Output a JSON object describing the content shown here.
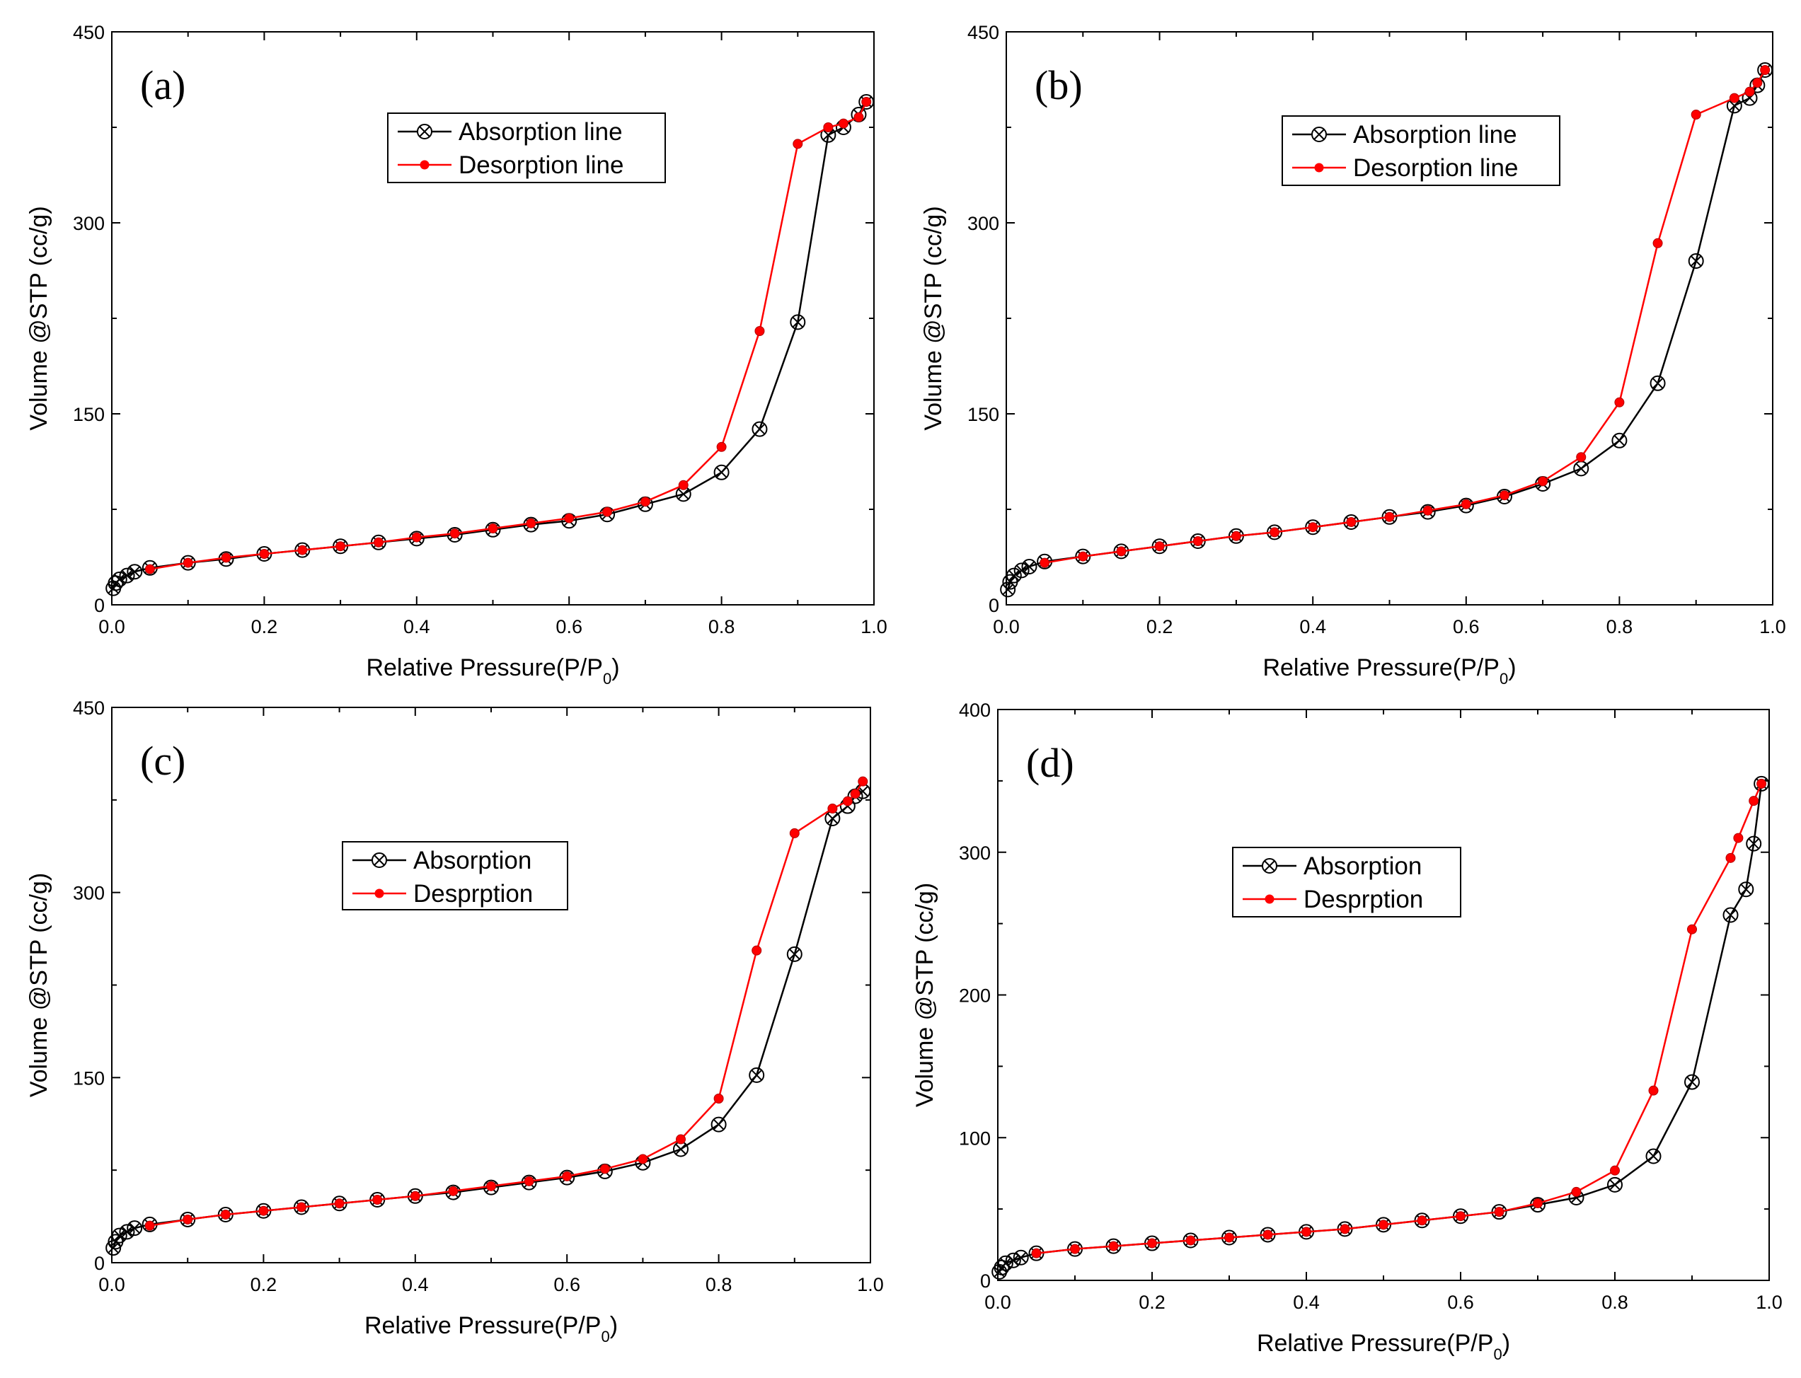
{
  "chart_data": [
    {
      "type": "line",
      "panel_label": "(a)",
      "xlabel_main": "Relative Pressure(P/P",
      "xlabel_sub": "0",
      "xlabel_end": ")",
      "ylabel": "Volume @STP (cc/g)",
      "xlim": [
        0,
        1.0
      ],
      "ylim": [
        0,
        450
      ],
      "xticks": [
        "0.0",
        "0.2",
        "0.4",
        "0.6",
        "0.8",
        "1.0"
      ],
      "yticks": [
        "0",
        "150",
        "300",
        "450"
      ],
      "legend_position": "upper-center",
      "series": [
        {
          "name": "Absorption line",
          "color": "#000000",
          "marker": "circle-x",
          "x": [
            0.002,
            0.005,
            0.01,
            0.02,
            0.03,
            0.05,
            0.1,
            0.15,
            0.2,
            0.25,
            0.3,
            0.35,
            0.4,
            0.45,
            0.5,
            0.55,
            0.6,
            0.65,
            0.7,
            0.75,
            0.8,
            0.85,
            0.9,
            0.94,
            0.96,
            0.98,
            0.99
          ],
          "y": [
            13,
            17,
            20,
            23,
            26,
            29,
            33,
            36,
            40,
            43,
            46,
            49,
            52,
            55,
            59,
            63,
            66,
            71,
            79,
            87,
            104,
            138,
            222,
            369,
            375,
            385,
            395
          ]
        },
        {
          "name": "Desorption line",
          "color": "#ff0000",
          "marker": "dot",
          "x": [
            0.05,
            0.1,
            0.15,
            0.2,
            0.25,
            0.3,
            0.35,
            0.4,
            0.45,
            0.5,
            0.55,
            0.6,
            0.65,
            0.7,
            0.75,
            0.8,
            0.85,
            0.9,
            0.94,
            0.96,
            0.98,
            0.99
          ],
          "y": [
            28,
            33,
            37,
            40,
            43,
            46,
            49,
            53,
            56,
            60,
            64,
            68,
            73,
            81,
            94,
            124,
            215,
            362,
            375,
            378,
            383,
            395
          ]
        }
      ]
    },
    {
      "type": "line",
      "panel_label": "(b)",
      "xlabel_main": "Relative Pressure(P/P",
      "xlabel_sub": "0",
      "xlabel_end": ")",
      "ylabel": "Volume @STP (cc/g)",
      "xlim": [
        0,
        1.0
      ],
      "ylim": [
        0,
        450
      ],
      "xticks": [
        "0.0",
        "0.2",
        "0.4",
        "0.6",
        "0.8",
        "1.0"
      ],
      "yticks": [
        "0",
        "150",
        "300",
        "450"
      ],
      "legend_position": "upper-center",
      "series": [
        {
          "name": "Absorption line",
          "color": "#000000",
          "marker": "circle-x",
          "x": [
            0.002,
            0.005,
            0.01,
            0.02,
            0.03,
            0.05,
            0.1,
            0.15,
            0.2,
            0.25,
            0.3,
            0.35,
            0.4,
            0.45,
            0.5,
            0.55,
            0.6,
            0.65,
            0.7,
            0.75,
            0.8,
            0.85,
            0.9,
            0.95,
            0.97,
            0.98,
            0.99
          ],
          "y": [
            12,
            18,
            23,
            27,
            30,
            34,
            38,
            42,
            46,
            50,
            54,
            57,
            61,
            65,
            69,
            73,
            78,
            85,
            95,
            107,
            129,
            174,
            270,
            392,
            398,
            408,
            420
          ]
        },
        {
          "name": "Desorption line",
          "color": "#ff0000",
          "marker": "dot",
          "x": [
            0.05,
            0.1,
            0.15,
            0.2,
            0.25,
            0.3,
            0.35,
            0.4,
            0.45,
            0.5,
            0.55,
            0.6,
            0.65,
            0.7,
            0.75,
            0.8,
            0.85,
            0.9,
            0.95,
            0.97,
            0.98,
            0.99
          ],
          "y": [
            33,
            38,
            42,
            46,
            50,
            54,
            57,
            61,
            65,
            69,
            74,
            79,
            86,
            97,
            116,
            159,
            284,
            385,
            398,
            403,
            410,
            420
          ]
        }
      ]
    },
    {
      "type": "line",
      "panel_label": "(c)",
      "xlabel_main": "Relative Pressure(P/P",
      "xlabel_sub": "0",
      "xlabel_end": ")",
      "ylabel": "Volume @STP (cc/g)",
      "xlim": [
        0,
        1.0
      ],
      "ylim": [
        0,
        450
      ],
      "xticks": [
        "0.0",
        "0.2",
        "0.4",
        "0.6",
        "0.8",
        "1.0"
      ],
      "yticks": [
        "0",
        "150",
        "300",
        "450"
      ],
      "legend_position": "upper-center",
      "series": [
        {
          "name": "Absorption",
          "color": "#000000",
          "marker": "circle-x",
          "x": [
            0.002,
            0.005,
            0.01,
            0.02,
            0.03,
            0.05,
            0.1,
            0.15,
            0.2,
            0.25,
            0.3,
            0.35,
            0.4,
            0.45,
            0.5,
            0.55,
            0.6,
            0.65,
            0.7,
            0.75,
            0.8,
            0.85,
            0.9,
            0.95,
            0.97,
            0.98,
            0.99
          ],
          "y": [
            12,
            17,
            22,
            25,
            28,
            31,
            35,
            39,
            42,
            45,
            48,
            51,
            54,
            57,
            61,
            65,
            69,
            74,
            81,
            92,
            112,
            152,
            250,
            360,
            370,
            378,
            382
          ]
        },
        {
          "name": "Desprption",
          "color": "#ff0000",
          "marker": "dot",
          "x": [
            0.05,
            0.1,
            0.15,
            0.2,
            0.25,
            0.3,
            0.35,
            0.4,
            0.45,
            0.5,
            0.55,
            0.6,
            0.65,
            0.7,
            0.75,
            0.8,
            0.85,
            0.9,
            0.95,
            0.97,
            0.98,
            0.99
          ],
          "y": [
            30,
            35,
            39,
            42,
            45,
            48,
            51,
            54,
            58,
            62,
            66,
            70,
            76,
            84,
            100,
            133,
            253,
            348,
            368,
            374,
            380,
            390
          ]
        }
      ]
    },
    {
      "type": "line",
      "panel_label": "(d)",
      "xlabel_main": "Relative Pressure(P/P",
      "xlabel_sub": "0",
      "xlabel_end": ")",
      "ylabel": "Volume @STP (cc/g)",
      "xlim": [
        0,
        1.0
      ],
      "ylim": [
        0,
        400
      ],
      "xticks": [
        "0.0",
        "0.2",
        "0.4",
        "0.6",
        "0.8",
        "1.0"
      ],
      "yticks": [
        "0",
        "100",
        "200",
        "300",
        "400"
      ],
      "legend_position": "upper-center",
      "series": [
        {
          "name": "Absorption",
          "color": "#000000",
          "marker": "circle-x",
          "x": [
            0.002,
            0.005,
            0.01,
            0.02,
            0.03,
            0.05,
            0.1,
            0.15,
            0.2,
            0.25,
            0.3,
            0.35,
            0.4,
            0.45,
            0.5,
            0.55,
            0.6,
            0.65,
            0.7,
            0.75,
            0.8,
            0.85,
            0.9,
            0.95,
            0.97,
            0.98,
            0.99
          ],
          "y": [
            6,
            9,
            12,
            14,
            16,
            19,
            22,
            24,
            26,
            28,
            30,
            32,
            34,
            36,
            39,
            42,
            45,
            48,
            53,
            58,
            67,
            87,
            139,
            256,
            274,
            306,
            348
          ]
        },
        {
          "name": "Desprption",
          "color": "#ff0000",
          "marker": "dot",
          "x": [
            0.05,
            0.1,
            0.15,
            0.2,
            0.25,
            0.3,
            0.35,
            0.4,
            0.45,
            0.5,
            0.55,
            0.6,
            0.65,
            0.7,
            0.75,
            0.8,
            0.85,
            0.9,
            0.95,
            0.96,
            0.98,
            0.99
          ],
          "y": [
            19,
            22,
            24,
            26,
            28,
            30,
            32,
            34,
            36,
            39,
            42,
            45,
            48,
            54,
            62,
            77,
            133,
            246,
            296,
            310,
            336,
            348
          ]
        }
      ]
    }
  ]
}
